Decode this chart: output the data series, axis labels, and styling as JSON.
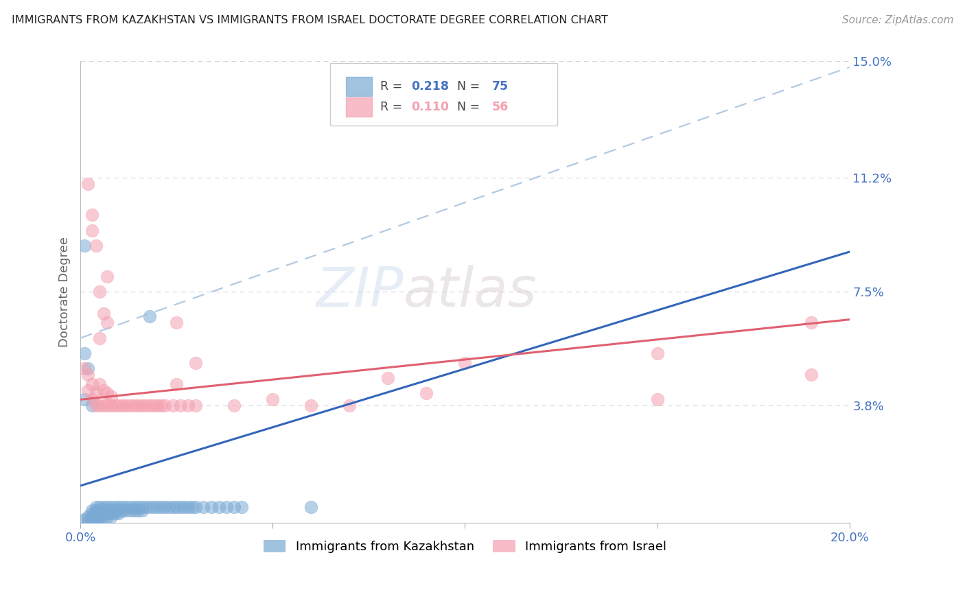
{
  "title": "IMMIGRANTS FROM KAZAKHSTAN VS IMMIGRANTS FROM ISRAEL DOCTORATE DEGREE CORRELATION CHART",
  "source": "Source: ZipAtlas.com",
  "ylabel": "Doctorate Degree",
  "xlim": [
    0.0,
    0.2
  ],
  "ylim": [
    0.0,
    0.15
  ],
  "xtick_positions": [
    0.0,
    0.05,
    0.1,
    0.15,
    0.2
  ],
  "xticklabels": [
    "0.0%",
    "",
    "",
    "",
    "20.0%"
  ],
  "ytick_positions": [
    0.0,
    0.038,
    0.075,
    0.112,
    0.15
  ],
  "yticklabels": [
    "",
    "3.8%",
    "7.5%",
    "11.2%",
    "15.0%"
  ],
  "kazakhstan_color": "#7aaad4",
  "israel_color": "#f4a0b0",
  "kaz_line_color": "#3366bb",
  "isr_line_color": "#e06070",
  "dashed_line_color": "#aac4e0",
  "background_color": "#ffffff",
  "grid_color": "#cccccc",
  "axis_label_color": "#4472c4",
  "watermark": "ZIPatlas",
  "legend_kaz_R": "0.218",
  "legend_kaz_N": "75",
  "legend_isr_R": "0.110",
  "legend_isr_N": "56",
  "kaz_line_x": [
    0.0,
    0.2
  ],
  "kaz_line_y": [
    0.012,
    0.088
  ],
  "isr_line_x": [
    0.0,
    0.2
  ],
  "isr_line_y": [
    0.04,
    0.066
  ],
  "dash_line_x": [
    0.0,
    0.2
  ],
  "dash_line_y": [
    0.06,
    0.148
  ],
  "kaz_x": [
    0.001,
    0.002,
    0.002,
    0.002,
    0.003,
    0.003,
    0.003,
    0.003,
    0.004,
    0.004,
    0.004,
    0.004,
    0.004,
    0.005,
    0.005,
    0.005,
    0.005,
    0.005,
    0.006,
    0.006,
    0.006,
    0.006,
    0.007,
    0.007,
    0.007,
    0.007,
    0.008,
    0.008,
    0.008,
    0.008,
    0.009,
    0.009,
    0.009,
    0.01,
    0.01,
    0.01,
    0.011,
    0.011,
    0.012,
    0.012,
    0.013,
    0.013,
    0.014,
    0.014,
    0.015,
    0.015,
    0.016,
    0.016,
    0.017,
    0.018,
    0.019,
    0.02,
    0.021,
    0.022,
    0.023,
    0.024,
    0.025,
    0.026,
    0.027,
    0.028,
    0.029,
    0.03,
    0.032,
    0.034,
    0.036,
    0.038,
    0.001,
    0.001,
    0.002,
    0.003,
    0.04,
    0.042,
    0.06,
    0.001,
    0.018
  ],
  "kaz_y": [
    0.001,
    0.0,
    0.001,
    0.002,
    0.001,
    0.002,
    0.003,
    0.004,
    0.001,
    0.002,
    0.003,
    0.004,
    0.005,
    0.001,
    0.002,
    0.003,
    0.004,
    0.005,
    0.002,
    0.003,
    0.004,
    0.005,
    0.002,
    0.003,
    0.004,
    0.005,
    0.002,
    0.003,
    0.004,
    0.005,
    0.003,
    0.004,
    0.005,
    0.003,
    0.004,
    0.005,
    0.004,
    0.005,
    0.004,
    0.005,
    0.004,
    0.005,
    0.004,
    0.005,
    0.004,
    0.005,
    0.004,
    0.005,
    0.005,
    0.005,
    0.005,
    0.005,
    0.005,
    0.005,
    0.005,
    0.005,
    0.005,
    0.005,
    0.005,
    0.005,
    0.005,
    0.005,
    0.005,
    0.005,
    0.005,
    0.005,
    0.04,
    0.055,
    0.05,
    0.038,
    0.005,
    0.005,
    0.005,
    0.09,
    0.067
  ],
  "isr_x": [
    0.001,
    0.002,
    0.002,
    0.003,
    0.003,
    0.004,
    0.004,
    0.005,
    0.005,
    0.006,
    0.006,
    0.007,
    0.007,
    0.008,
    0.008,
    0.009,
    0.01,
    0.011,
    0.012,
    0.013,
    0.014,
    0.015,
    0.016,
    0.017,
    0.018,
    0.019,
    0.02,
    0.021,
    0.022,
    0.024,
    0.026,
    0.028,
    0.03,
    0.003,
    0.005,
    0.007,
    0.007,
    0.025,
    0.03,
    0.025,
    0.08,
    0.1,
    0.15,
    0.19,
    0.002,
    0.003,
    0.004,
    0.005,
    0.006,
    0.07,
    0.04,
    0.05,
    0.06,
    0.09,
    0.15,
    0.19
  ],
  "isr_y": [
    0.05,
    0.043,
    0.048,
    0.04,
    0.045,
    0.038,
    0.042,
    0.038,
    0.045,
    0.038,
    0.043,
    0.038,
    0.042,
    0.038,
    0.041,
    0.038,
    0.038,
    0.038,
    0.038,
    0.038,
    0.038,
    0.038,
    0.038,
    0.038,
    0.038,
    0.038,
    0.038,
    0.038,
    0.038,
    0.038,
    0.038,
    0.038,
    0.038,
    0.095,
    0.075,
    0.08,
    0.065,
    0.065,
    0.052,
    0.045,
    0.047,
    0.052,
    0.055,
    0.065,
    0.11,
    0.1,
    0.09,
    0.06,
    0.068,
    0.038,
    0.038,
    0.04,
    0.038,
    0.042,
    0.04,
    0.048
  ]
}
